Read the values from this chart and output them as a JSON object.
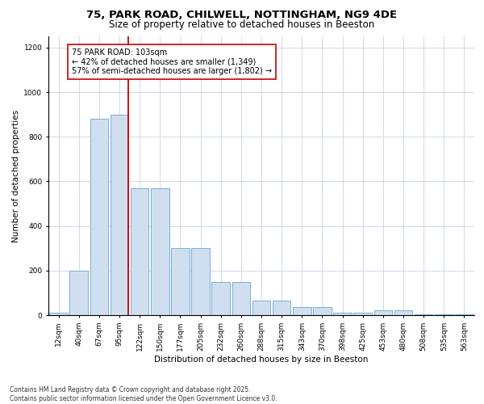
{
  "title_line1": "75, PARK ROAD, CHILWELL, NOTTINGHAM, NG9 4DE",
  "title_line2": "Size of property relative to detached houses in Beeston",
  "xlabel": "Distribution of detached houses by size in Beeston",
  "ylabel": "Number of detached properties",
  "footnote": "Contains HM Land Registry data © Crown copyright and database right 2025.\nContains public sector information licensed under the Open Government Licence v3.0.",
  "categories": [
    "12sqm",
    "40sqm",
    "67sqm",
    "95sqm",
    "122sqm",
    "150sqm",
    "177sqm",
    "205sqm",
    "232sqm",
    "260sqm",
    "288sqm",
    "315sqm",
    "343sqm",
    "370sqm",
    "398sqm",
    "425sqm",
    "453sqm",
    "480sqm",
    "508sqm",
    "535sqm",
    "563sqm"
  ],
  "values": [
    10,
    200,
    880,
    900,
    570,
    570,
    300,
    300,
    150,
    150,
    65,
    65,
    35,
    35,
    10,
    10,
    20,
    20,
    5,
    5,
    2
  ],
  "bar_color": "#cfdff0",
  "bar_edge_color": "#7bafd4",
  "vline_x_index": 3,
  "vline_color": "#cc0000",
  "annotation_text": "75 PARK ROAD: 103sqm\n← 42% of detached houses are smaller (1,349)\n57% of semi-detached houses are larger (1,802) →",
  "annotation_box_color": "#ffffff",
  "annotation_box_edge": "#cc0000",
  "ylim": [
    0,
    1250
  ],
  "yticks": [
    0,
    200,
    400,
    600,
    800,
    1000,
    1200
  ],
  "background_color": "#ffffff",
  "grid_color": "#d0d8ea",
  "title_fontsize": 9.5,
  "subtitle_fontsize": 8.5,
  "axis_label_fontsize": 7.5,
  "tick_fontsize": 6.5,
  "annotation_fontsize": 7,
  "footnote_fontsize": 5.5
}
